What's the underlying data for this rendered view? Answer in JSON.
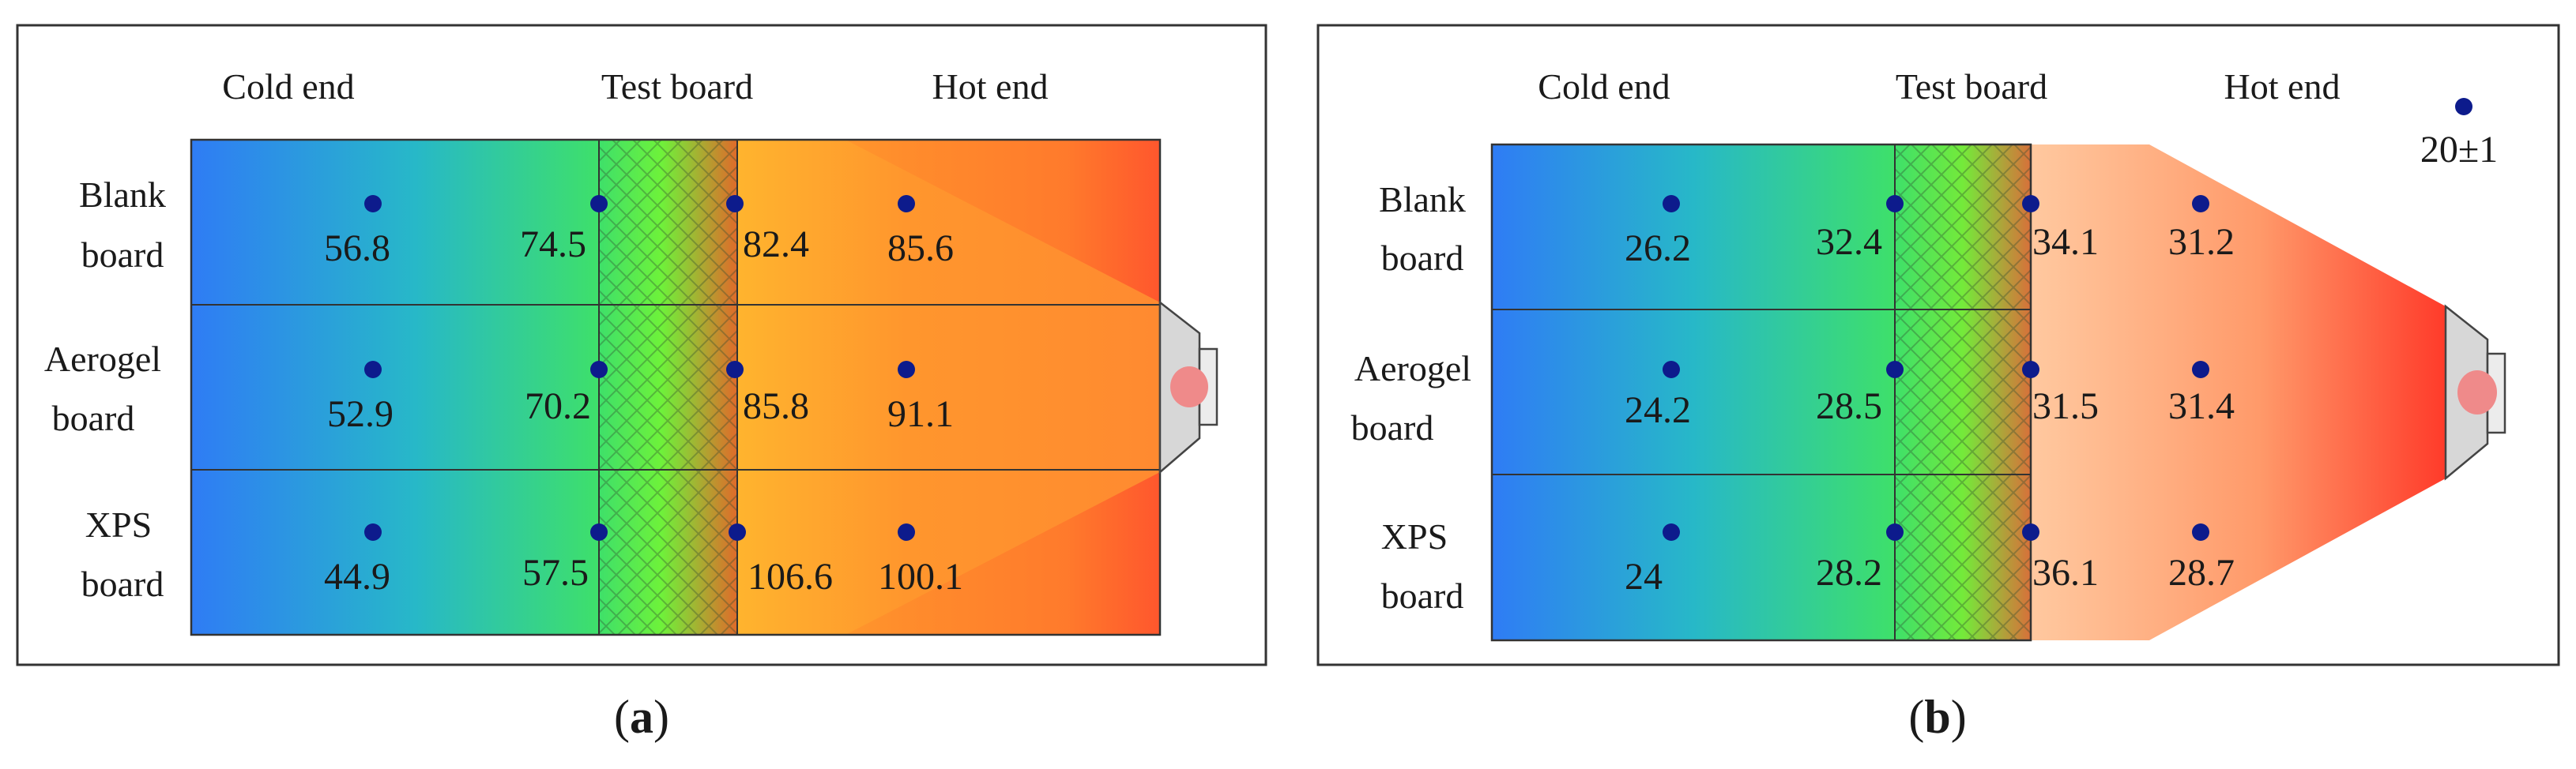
{
  "panels": [
    {
      "id": "a",
      "caption_open": "(",
      "caption_letter": "a",
      "caption_close": ")",
      "headers": {
        "cold": "Cold end",
        "test": "Test board",
        "hot": "Hot end"
      },
      "rows": [
        {
          "label_line1": "Blank",
          "label_line2": "board",
          "values": [
            "56.8",
            "74.5",
            "82.4",
            "85.6"
          ]
        },
        {
          "label_line1": "Aerogel",
          "label_line2": "board",
          "values": [
            "52.9",
            "70.2",
            "85.8",
            "91.1"
          ]
        },
        {
          "label_line1": "XPS",
          "label_line2": "board",
          "values": [
            "44.9",
            "57.5",
            "106.6",
            "100.1"
          ]
        }
      ]
    },
    {
      "id": "b",
      "caption_open": "(",
      "caption_letter": "b",
      "caption_close": ")",
      "headers": {
        "cold": "Cold end",
        "test": "Test board",
        "hot": "Hot end"
      },
      "ambient": "20±1",
      "rows": [
        {
          "label_line1": "Blank",
          "label_line2": "board",
          "values": [
            "26.2",
            "32.4",
            "34.1",
            "31.2"
          ]
        },
        {
          "label_line1": "Aerogel",
          "label_line2": "board",
          "values": [
            "24.2",
            "28.5",
            "31.5",
            "31.4"
          ]
        },
        {
          "label_line1": "XPS",
          "label_line2": "board",
          "values": [
            "24",
            "28.2",
            "36.1",
            "28.7"
          ]
        }
      ]
    }
  ],
  "colors": {
    "marker": "#0d1b8c",
    "frame": "#333333",
    "cold_blue": "#2f7cf5",
    "warm_green": "#3ee06a",
    "hot_orange": "#ff8c2a",
    "heater_red": "#ff3b2a"
  }
}
